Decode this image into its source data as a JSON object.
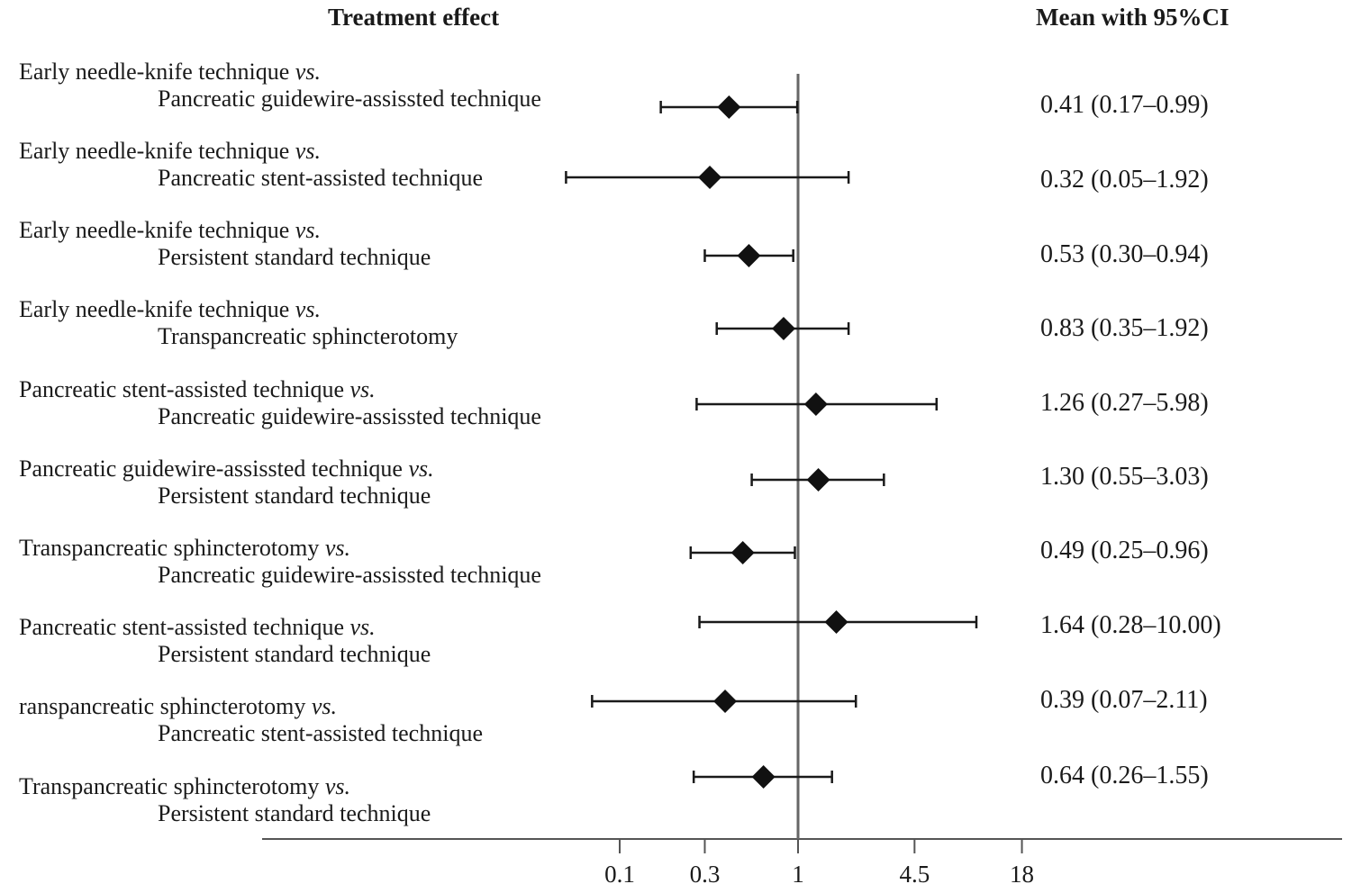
{
  "headers": {
    "left": "Treatment effect",
    "right": "Mean with 95%CI"
  },
  "chart_data": {
    "type": "forest",
    "scale": "log",
    "reference_line": 1,
    "x_ticks": [
      "0.1",
      "0.3",
      "1",
      "4.5",
      "18"
    ],
    "x_tick_values": [
      0.1,
      0.3,
      1,
      4.5,
      18
    ],
    "rows": [
      {
        "line1": "Early needle-knife technique",
        "vs": "vs.",
        "line2": "Pancreatic guidewire-assissted technique",
        "mean": 0.41,
        "lower": 0.17,
        "upper": 0.99,
        "value_text": "0.41 (0.17–0.99)"
      },
      {
        "line1": "Early needle-knife technique",
        "vs": "vs.",
        "line2": "Pancreatic stent-assisted technique",
        "mean": 0.32,
        "lower": 0.05,
        "upper": 1.92,
        "value_text": "0.32 (0.05–1.92)"
      },
      {
        "line1": "Early needle-knife technique",
        "vs": "vs.",
        "line2": "Persistent standard technique",
        "mean": 0.53,
        "lower": 0.3,
        "upper": 0.94,
        "value_text": "0.53 (0.30–0.94)"
      },
      {
        "line1": "Early needle-knife technique",
        "vs": "vs.",
        "line2": "Transpancreatic sphincterotomy",
        "mean": 0.83,
        "lower": 0.35,
        "upper": 1.92,
        "value_text": "0.83 (0.35–1.92)"
      },
      {
        "line1": "Pancreatic stent-assisted technique",
        "vs": "vs.",
        "line2": "Pancreatic guidewire-assissted technique",
        "mean": 1.26,
        "lower": 0.27,
        "upper": 5.98,
        "value_text": "1.26 (0.27–5.98)"
      },
      {
        "line1": "Pancreatic guidewire-assissted technique",
        "vs": "vs.",
        "line2": "Persistent standard technique",
        "mean": 1.3,
        "lower": 0.55,
        "upper": 3.03,
        "value_text": "1.30 (0.55–3.03)"
      },
      {
        "line1": "Transpancreatic sphincterotomy",
        "vs": "vs.",
        "line2": "Pancreatic guidewire-assissted technique",
        "mean": 0.49,
        "lower": 0.25,
        "upper": 0.96,
        "value_text": "0.49 (0.25–0.96)"
      },
      {
        "line1": "Pancreatic stent-assisted technique",
        "vs": "vs.",
        "line2": "Persistent standard technique",
        "mean": 1.64,
        "lower": 0.28,
        "upper": 10.0,
        "value_text": "1.64 (0.28–10.00)"
      },
      {
        "line1": "ranspancreatic sphincterotomy",
        "vs": "vs.",
        "line2": "Pancreatic stent-assisted technique",
        "mean": 0.39,
        "lower": 0.07,
        "upper": 2.11,
        "value_text": "0.39 (0.07–2.11)"
      },
      {
        "line1": "Transpancreatic sphincterotomy",
        "vs": "vs.",
        "line2": "Persistent standard technique",
        "mean": 0.64,
        "lower": 0.26,
        "upper": 1.55,
        "value_text": "0.64 (0.26–1.55)"
      }
    ]
  }
}
